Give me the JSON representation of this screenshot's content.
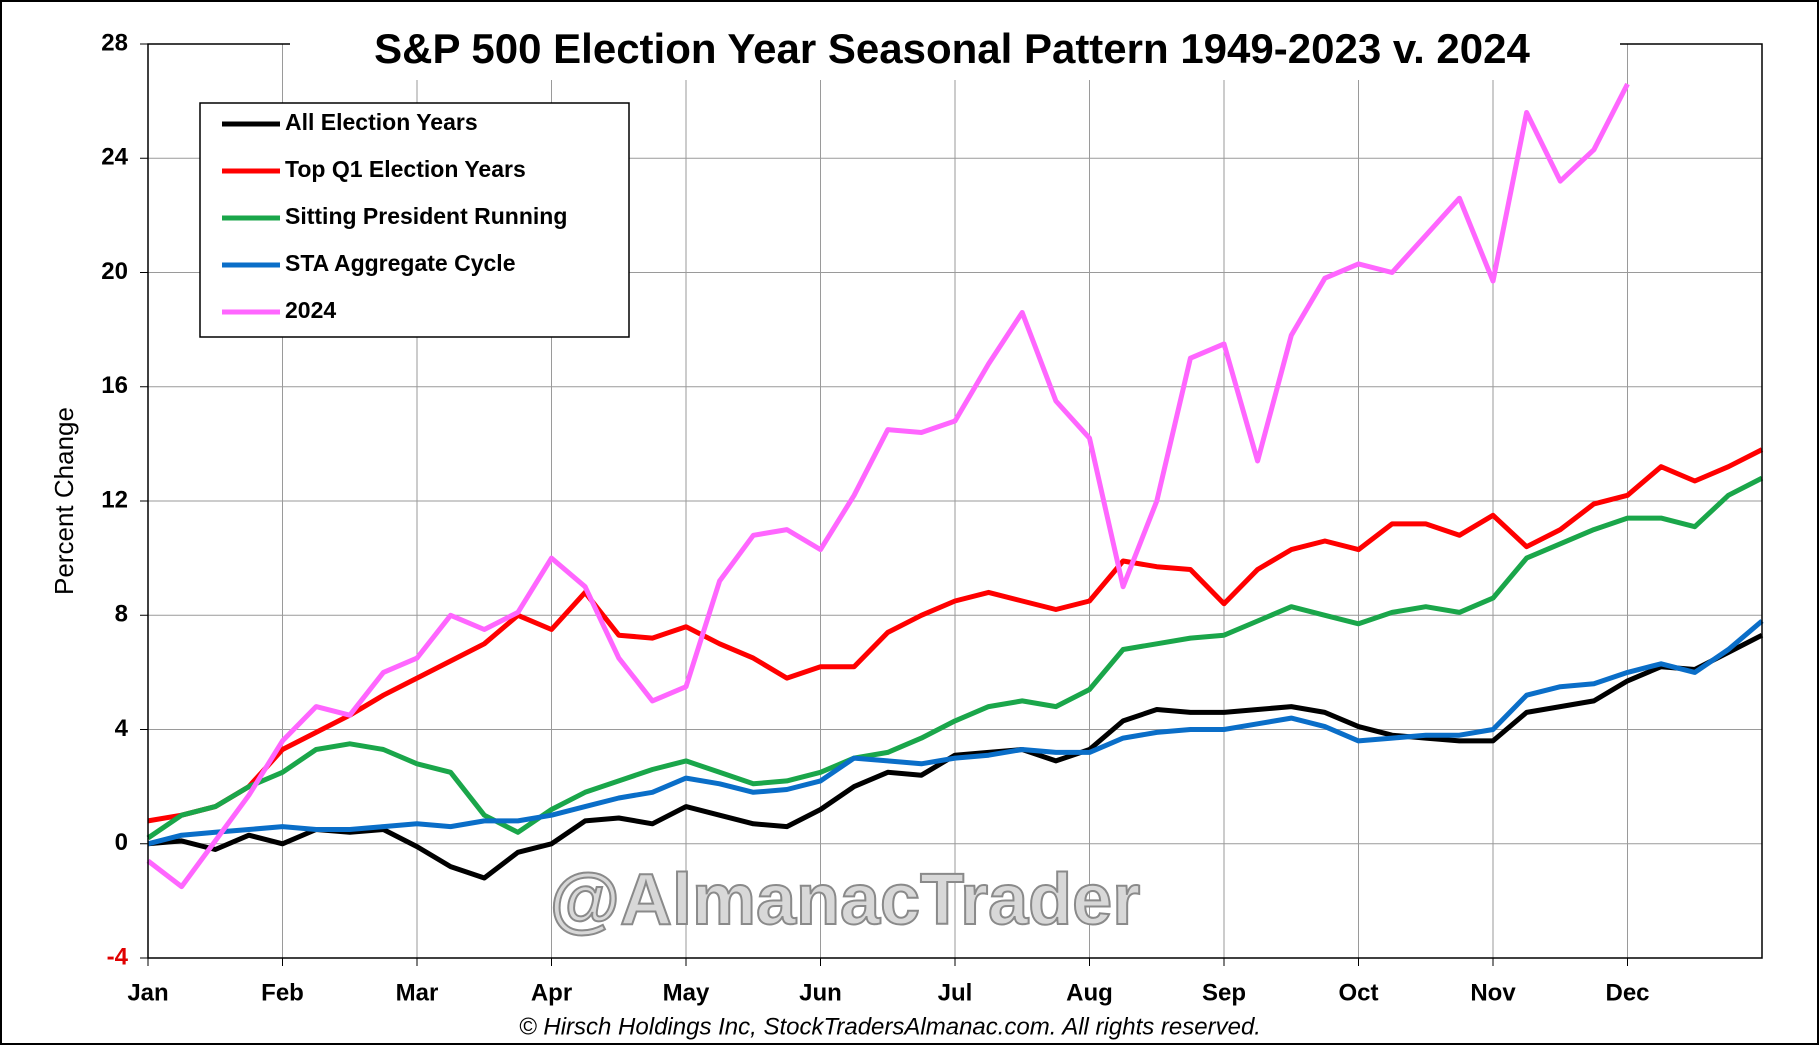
{
  "chart_data": {
    "type": "line",
    "title": "S&P 500 Election Year Seasonal Pattern 1949-2023 v. 2024",
    "y_label": "Percent Change",
    "watermark": "@AlmanacTrader",
    "footer": "© Hirsch Holdings Inc, StockTradersAlmanac.com. All rights reserved.",
    "x": [
      0,
      0.25,
      0.5,
      0.75,
      1,
      1.25,
      1.5,
      1.75,
      2,
      2.25,
      2.5,
      2.75,
      3,
      3.25,
      3.5,
      3.75,
      4,
      4.25,
      4.5,
      4.75,
      5,
      5.25,
      5.5,
      5.75,
      6,
      6.25,
      6.5,
      6.75,
      7,
      7.25,
      7.5,
      7.75,
      8,
      8.25,
      8.5,
      8.75,
      9,
      9.25,
      9.5,
      9.75,
      10,
      10.25,
      10.5,
      10.75,
      11,
      11.25,
      11.5,
      11.75,
      12
    ],
    "xlim": [
      0,
      12
    ],
    "xticks": [
      {
        "value": 0,
        "label": "Jan"
      },
      {
        "value": 1,
        "label": "Feb"
      },
      {
        "value": 2,
        "label": "Mar"
      },
      {
        "value": 3,
        "label": "Apr"
      },
      {
        "value": 4,
        "label": "May"
      },
      {
        "value": 5,
        "label": "Jun"
      },
      {
        "value": 6,
        "label": "Jul"
      },
      {
        "value": 7,
        "label": "Aug"
      },
      {
        "value": 8,
        "label": "Sep"
      },
      {
        "value": 9,
        "label": "Oct"
      },
      {
        "value": 10,
        "label": "Nov"
      },
      {
        "value": 11,
        "label": "Dec"
      }
    ],
    "ylim": [
      -4,
      28
    ],
    "yticks": [
      28,
      24,
      20,
      16,
      12,
      8,
      4,
      0,
      -4
    ],
    "grid": true,
    "legend": "top-left",
    "series": [
      {
        "name": "All Election Years",
        "color": "#000000",
        "values": [
          0,
          0.1,
          -0.2,
          0.3,
          0.0,
          0.5,
          0.4,
          0.5,
          -0.1,
          -0.8,
          -1.2,
          -0.3,
          0.0,
          0.8,
          0.9,
          0.7,
          1.3,
          1.0,
          0.7,
          0.6,
          1.2,
          2.0,
          2.5,
          2.4,
          3.1,
          3.2,
          3.3,
          2.9,
          3.3,
          4.3,
          4.7,
          4.6,
          4.6,
          4.7,
          4.8,
          4.6,
          4.1,
          3.8,
          3.7,
          3.6,
          3.6,
          4.6,
          4.8,
          5.0,
          5.7,
          6.2,
          6.1,
          6.7,
          7.3
        ]
      },
      {
        "name": "Top Q1 Election Years",
        "color": "#ff0000",
        "values": [
          0.8,
          1.0,
          1.3,
          2.0,
          3.3,
          3.9,
          4.5,
          5.2,
          5.8,
          6.4,
          7.0,
          8.0,
          7.5,
          8.8,
          7.3,
          7.2,
          7.6,
          7.0,
          6.5,
          5.8,
          6.2,
          6.2,
          7.4,
          8.0,
          8.5,
          8.8,
          8.5,
          8.2,
          8.5,
          9.9,
          9.7,
          9.6,
          8.4,
          9.6,
          10.3,
          10.6,
          10.3,
          11.2,
          11.2,
          10.8,
          11.5,
          10.4,
          11.0,
          11.9,
          12.2,
          13.2,
          12.7,
          13.2,
          13.8
        ]
      },
      {
        "name": "Sitting President Running",
        "color": "#1aa64a",
        "values": [
          0.2,
          1.0,
          1.3,
          2.0,
          2.5,
          3.3,
          3.5,
          3.3,
          2.8,
          2.5,
          1.0,
          0.4,
          1.2,
          1.8,
          2.2,
          2.6,
          2.9,
          2.5,
          2.1,
          2.2,
          2.5,
          3.0,
          3.2,
          3.7,
          4.3,
          4.8,
          5.0,
          4.8,
          5.4,
          6.8,
          7.0,
          7.2,
          7.3,
          7.8,
          8.3,
          8.0,
          7.7,
          8.1,
          8.3,
          8.1,
          8.6,
          10.0,
          10.5,
          11.0,
          11.4,
          11.4,
          11.1,
          12.2,
          12.8
        ]
      },
      {
        "name": "STA Aggregate Cycle",
        "color": "#0a6ec8",
        "values": [
          0,
          0.3,
          0.4,
          0.5,
          0.6,
          0.5,
          0.5,
          0.6,
          0.7,
          0.6,
          0.8,
          0.8,
          1.0,
          1.3,
          1.6,
          1.8,
          2.3,
          2.1,
          1.8,
          1.9,
          2.2,
          3.0,
          2.9,
          2.8,
          3.0,
          3.1,
          3.3,
          3.2,
          3.2,
          3.7,
          3.9,
          4.0,
          4.0,
          4.2,
          4.4,
          4.1,
          3.6,
          3.7,
          3.8,
          3.8,
          4.0,
          5.2,
          5.5,
          5.6,
          6.0,
          6.3,
          6.0,
          6.8,
          7.8
        ]
      },
      {
        "name": "2024",
        "color": "#ff66ff",
        "values": [
          -0.6,
          -1.5,
          0.1,
          1.7,
          3.6,
          4.8,
          4.5,
          6.0,
          6.5,
          8.0,
          7.5,
          8.1,
          10.0,
          9.0,
          6.5,
          5.0,
          5.5,
          9.2,
          10.8,
          11.0,
          10.3,
          12.2,
          14.5,
          14.4,
          14.8,
          16.8,
          18.6,
          15.5,
          14.2,
          9.0,
          12.0,
          17.0,
          17.5,
          13.4,
          17.8,
          19.8,
          20.3,
          20.0,
          21.3,
          22.6,
          19.7,
          25.6,
          23.2,
          24.3,
          26.6,
          null,
          null,
          null,
          null
        ]
      }
    ]
  }
}
